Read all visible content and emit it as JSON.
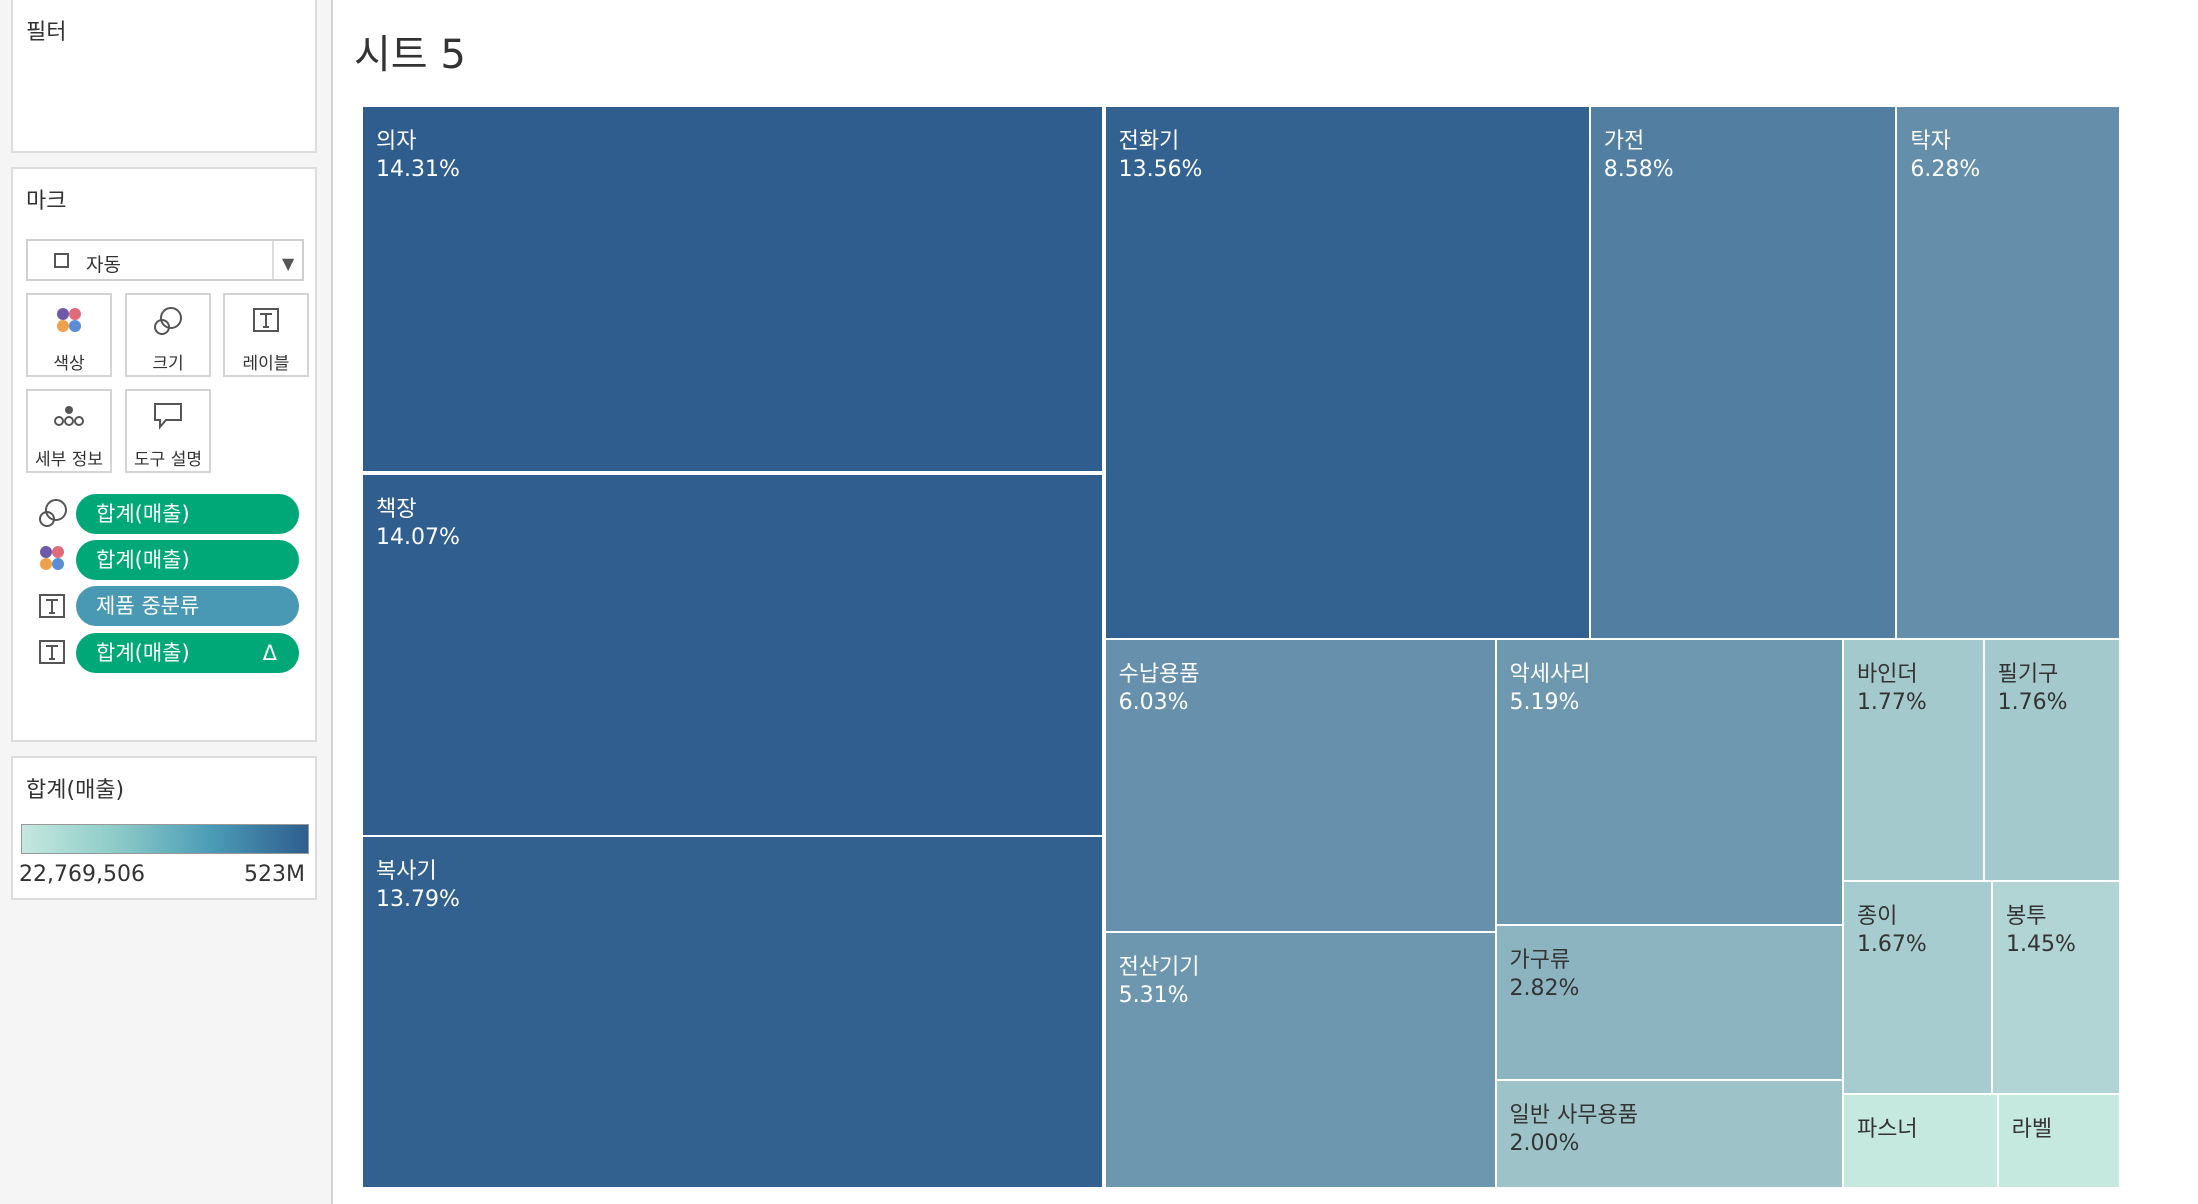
{
  "left_pane": {
    "filters": {
      "title": "필터"
    },
    "marks": {
      "title": "마크",
      "mark_type": "자동",
      "buttons": {
        "color": "색상",
        "size": "크기",
        "label": "레이블",
        "detail": "세부 정보",
        "tooltip": "도구 설명"
      },
      "pills": [
        {
          "icon": "size-icon",
          "label": "합계(매출)",
          "color": "#00a878"
        },
        {
          "icon": "color-icon",
          "label": "합계(매출)",
          "color": "#00a878"
        },
        {
          "icon": "label-icon",
          "label": "제품 중분류",
          "color": "#4a99b4"
        },
        {
          "icon": "label-icon",
          "label": "합계(매출)",
          "color": "#00a878",
          "badge": "Δ"
        }
      ]
    },
    "legend": {
      "title": "합계(매출)",
      "min_label": "22,769,506",
      "max_label": "523M",
      "color_low": "#c5e8df",
      "color_high": "#2f5e8e"
    }
  },
  "sheet": {
    "title": "시트 5"
  },
  "chart_data": {
    "type": "treemap",
    "size_measure": "합계(매출)",
    "color_measure": "합계(매출)",
    "label_field": "제품 중분류",
    "items": [
      {
        "name": "의자",
        "pct_label": "14.31%",
        "share": 14.31
      },
      {
        "name": "책장",
        "pct_label": "14.07%",
        "share": 14.07
      },
      {
        "name": "복사기",
        "pct_label": "13.79%",
        "share": 13.79
      },
      {
        "name": "전화기",
        "pct_label": "13.56%",
        "share": 13.56
      },
      {
        "name": "가전",
        "pct_label": "8.58%",
        "share": 8.58
      },
      {
        "name": "탁자",
        "pct_label": "6.28%",
        "share": 6.28
      },
      {
        "name": "수납용품",
        "pct_label": "6.03%",
        "share": 6.03
      },
      {
        "name": "전산기기",
        "pct_label": "5.31%",
        "share": 5.31
      },
      {
        "name": "악세사리",
        "pct_label": "5.19%",
        "share": 5.19
      },
      {
        "name": "가구류",
        "pct_label": "2.82%",
        "share": 2.82
      },
      {
        "name": "일반 사무용품",
        "pct_label": "2.00%",
        "share": 2.0
      },
      {
        "name": "바인더",
        "pct_label": "1.77%",
        "share": 1.77
      },
      {
        "name": "필기구",
        "pct_label": "1.76%",
        "share": 1.76
      },
      {
        "name": "종이",
        "pct_label": "1.67%",
        "share": 1.67
      },
      {
        "name": "봉투",
        "pct_label": "1.45%",
        "share": 1.45
      },
      {
        "name": "파스너",
        "pct_label": "",
        "share": null
      },
      {
        "name": "라벨",
        "pct_label": "",
        "share": null
      }
    ]
  }
}
